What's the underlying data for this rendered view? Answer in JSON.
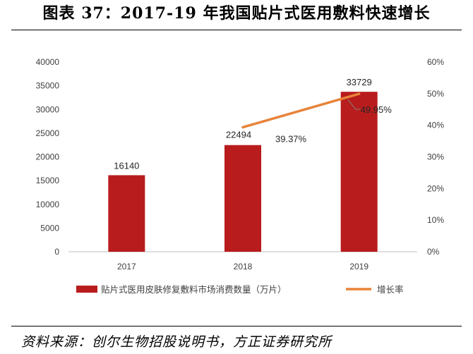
{
  "figure_title": "图表 37：2017-19 年我国贴片式医用敷料快速增长",
  "source": "资料来源：创尔生物招股说明书，方正证券研究所",
  "colors": {
    "bar": "#b81c1c",
    "line": "#e8833a",
    "axis": "#bfbfbf",
    "text": "#404040"
  },
  "chart_data": {
    "type": "bar",
    "categories": [
      "2017",
      "2018",
      "2019"
    ],
    "series": [
      {
        "name": "贴片式医用皮肤修复敷料市场消费数量（万片）",
        "type": "bar",
        "axis": "left",
        "values": [
          16140,
          22494,
          33729
        ],
        "labels": [
          "16140",
          "22494",
          "33729"
        ]
      },
      {
        "name": "增长率",
        "type": "line",
        "axis": "right",
        "values": [
          null,
          39.37,
          49.95
        ],
        "labels": [
          "",
          "39.37%",
          "49.95%"
        ]
      }
    ],
    "y_left": {
      "min": 0,
      "max": 40000,
      "ticks": [
        "0",
        "5000",
        "10000",
        "15000",
        "20000",
        "25000",
        "30000",
        "35000",
        "40000"
      ]
    },
    "y_right": {
      "min": 0,
      "max": 60,
      "ticks": [
        "0%",
        "10%",
        "20%",
        "30%",
        "40%",
        "50%",
        "60%"
      ]
    },
    "legend_position": "bottom",
    "grid": false
  }
}
